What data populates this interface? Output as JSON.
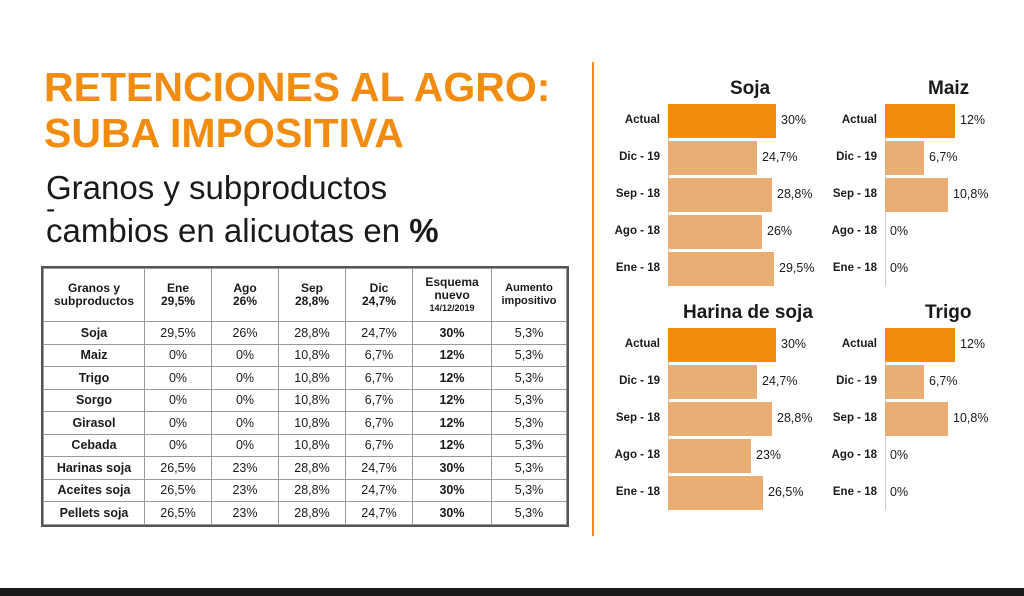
{
  "headline": {
    "line1": "RETENCIONES AL AGRO:",
    "line2": "SUBA IMPOSITIVA"
  },
  "subtitle": {
    "line1": "Granos y subproductos",
    "line2_dash": "-",
    "line2": "cambios en alicuotas en",
    "pct": "%"
  },
  "table": {
    "headers": [
      {
        "l1": "Granos y",
        "l2": "subproductos"
      },
      {
        "l1": "Ene",
        "l2": "29,5%"
      },
      {
        "l1": "Ago",
        "l2": "26%"
      },
      {
        "l1": "Sep",
        "l2": "28,8%"
      },
      {
        "l1": "Dic",
        "l2": "24,7%"
      },
      {
        "l1": "Esquema",
        "l2": "nuevo",
        "l3": "14/12/2019"
      },
      {
        "l1": "Aumento",
        "l2": "impositivo"
      }
    ],
    "rows": [
      [
        "Soja",
        "29,5%",
        "26%",
        "28,8%",
        "24,7%",
        "30%",
        "5,3%"
      ],
      [
        "Maiz",
        "0%",
        "0%",
        "10,8%",
        "6,7%",
        "12%",
        "5,3%"
      ],
      [
        "Trigo",
        "0%",
        "0%",
        "10,8%",
        "6,7%",
        "12%",
        "5,3%"
      ],
      [
        "Sorgo",
        "0%",
        "0%",
        "10,8%",
        "6,7%",
        "12%",
        "5,3%"
      ],
      [
        "Girasol",
        "0%",
        "0%",
        "10,8%",
        "6,7%",
        "12%",
        "5,3%"
      ],
      [
        "Cebada",
        "0%",
        "0%",
        "10,8%",
        "6,7%",
        "12%",
        "5,3%"
      ],
      [
        "Harinas soja",
        "26,5%",
        "23%",
        "28,8%",
        "24,7%",
        "30%",
        "5,3%"
      ],
      [
        "Aceites soja",
        "26,5%",
        "23%",
        "28,8%",
        "24,7%",
        "30%",
        "5,3%"
      ],
      [
        "Pellets soja",
        "26,5%",
        "23%",
        "28,8%",
        "24,7%",
        "30%",
        "5,3%"
      ]
    ]
  },
  "colors": {
    "accent": "#f28c0f",
    "bar_light": "#e8ae73",
    "text": "#1a1a1a"
  },
  "chart_data": [
    {
      "type": "bar",
      "orientation": "horizontal",
      "title": "Soja",
      "categories": [
        "Actual",
        "Dic - 19",
        "Sep - 18",
        "Ago - 18",
        "Ene - 18"
      ],
      "values": [
        30,
        24.7,
        28.8,
        26,
        29.5
      ],
      "labels": [
        "30%",
        "24,7%",
        "28,8%",
        "26%",
        "29,5%"
      ],
      "xlim": [
        0,
        30
      ]
    },
    {
      "type": "bar",
      "orientation": "horizontal",
      "title": "Maiz",
      "categories": [
        "Actual",
        "Dic - 19",
        "Sep - 18",
        "Ago - 18",
        "Ene - 18"
      ],
      "values": [
        12,
        6.7,
        10.8,
        0,
        0
      ],
      "labels": [
        "12%",
        "6,7%",
        "10,8%",
        "0%",
        "0%"
      ],
      "xlim": [
        0,
        12
      ]
    },
    {
      "type": "bar",
      "orientation": "horizontal",
      "title": "Harina de soja",
      "categories": [
        "Actual",
        "Dic - 19",
        "Sep - 18",
        "Ago - 18",
        "Ene - 18"
      ],
      "values": [
        30,
        24.7,
        28.8,
        23,
        26.5
      ],
      "labels": [
        "30%",
        "24,7%",
        "28,8%",
        "23%",
        "26,5%"
      ],
      "xlim": [
        0,
        30
      ]
    },
    {
      "type": "bar",
      "orientation": "horizontal",
      "title": "Trigo",
      "categories": [
        "Actual",
        "Dic - 19",
        "Sep - 18",
        "Ago - 18",
        "Ene - 18"
      ],
      "values": [
        12,
        6.7,
        10.8,
        0,
        0
      ],
      "labels": [
        "12%",
        "6,7%",
        "10,8%",
        "0%",
        "0%"
      ],
      "xlim": [
        0,
        12
      ]
    }
  ]
}
